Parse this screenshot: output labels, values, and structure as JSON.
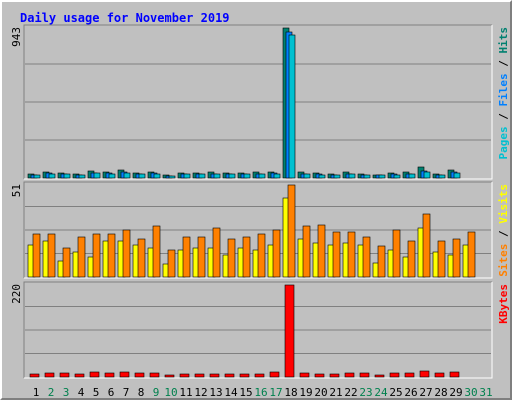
{
  "colors": {
    "background": "#c0c0c0",
    "title": "#0000ff",
    "pages": "#00c0d0",
    "files": "#0080ff",
    "hits": "#008070",
    "sites": "#ff8000",
    "visits": "#ffff00",
    "kbytes": "#ff0000",
    "weekday_label": "#000000",
    "weekend_label": "#00804d"
  },
  "chart_data": {
    "type": "bar",
    "title": "Daily usage for November 2019",
    "categories": [
      "1",
      "2",
      "3",
      "4",
      "5",
      "6",
      "7",
      "8",
      "9",
      "10",
      "11",
      "12",
      "13",
      "14",
      "15",
      "16",
      "17",
      "18",
      "19",
      "20",
      "21",
      "22",
      "23",
      "24",
      "25",
      "26",
      "27",
      "28",
      "29",
      "30",
      "31"
    ],
    "weekend_days": [
      "2",
      "3",
      "9",
      "10",
      "16",
      "17",
      "23",
      "24",
      "30",
      "31"
    ],
    "panels": [
      {
        "ymax_label": "943",
        "ylim": [
          0,
          943
        ],
        "legend": [
          {
            "text": "Pages",
            "color_key": "pages"
          },
          {
            "text": " / ",
            "color_key": "weekday_label"
          },
          {
            "text": "Files",
            "color_key": "files"
          },
          {
            "text": " / ",
            "color_key": "weekday_label"
          },
          {
            "text": "Hits",
            "color_key": "hits"
          }
        ],
        "series": [
          {
            "name": "Hits",
            "color_key": "hits",
            "values": [
              26,
              40,
              32,
              28,
              44,
              38,
              48,
              34,
              38,
              18,
              32,
              32,
              36,
              32,
              32,
              36,
              38,
              943,
              36,
              30,
              28,
              36,
              28,
              22,
              30,
              36,
              68,
              28,
              52,
              0,
              0
            ]
          },
          {
            "name": "Files",
            "color_key": "files",
            "values": [
              22,
              30,
              26,
              22,
              34,
              30,
              36,
              26,
              30,
              14,
              26,
              26,
              28,
              26,
              26,
              28,
              30,
              920,
              28,
              24,
              22,
              28,
              22,
              18,
              24,
              28,
              44,
              22,
              36,
              0,
              0
            ]
          },
          {
            "name": "Pages",
            "color_key": "pages",
            "values": [
              20,
              28,
              24,
              20,
              32,
              28,
              34,
              24,
              28,
              12,
              24,
              24,
              26,
              24,
              24,
              26,
              28,
              900,
              26,
              22,
              20,
              26,
              20,
              16,
              22,
              26,
              40,
              20,
              34,
              0,
              0
            ]
          }
        ]
      },
      {
        "ymax_label": "51",
        "ylim": [
          0,
          51
        ],
        "legend": [
          {
            "text": "Sites",
            "color_key": "sites"
          },
          {
            "text": " / ",
            "color_key": "weekday_label"
          },
          {
            "text": "Visits",
            "color_key": "visits"
          }
        ],
        "series": [
          {
            "name": "Visits",
            "color_key": "visits",
            "values": [
              18,
              20,
              9,
              14,
              11,
              20,
              20,
              18,
              16,
              7,
              15,
              16,
              16,
              12,
              16,
              15,
              18,
              44,
              21,
              19,
              18,
              19,
              18,
              8,
              15,
              11,
              27,
              14,
              12,
              18,
              0
            ]
          },
          {
            "name": "Sites",
            "color_key": "sites",
            "values": [
              24,
              24,
              16,
              22,
              24,
              24,
              26,
              21,
              28,
              15,
              22,
              22,
              27,
              21,
              22,
              24,
              26,
              51,
              28,
              29,
              25,
              25,
              22,
              17,
              26,
              20,
              35,
              20,
              21,
              25,
              0
            ]
          }
        ]
      },
      {
        "ymax_label": "220",
        "ylim": [
          0,
          220
        ],
        "legend": [
          {
            "text": "KBytes",
            "color_key": "kbytes"
          }
        ],
        "series": [
          {
            "name": "KBytes",
            "color_key": "kbytes",
            "values": [
              8,
              10,
              10,
              8,
              11,
              10,
              12,
              9,
              10,
              5,
              7,
              8,
              8,
              8,
              8,
              8,
              11,
              220,
              9,
              7,
              8,
              10,
              9,
              5,
              10,
              10,
              14,
              9,
              12,
              0,
              0
            ]
          }
        ]
      }
    ]
  }
}
